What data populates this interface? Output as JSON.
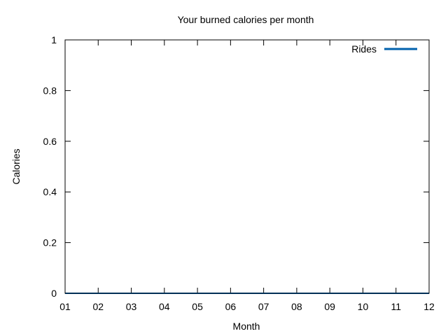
{
  "chart_data": {
    "type": "line",
    "title": "Your burned calories per month",
    "xlabel": "Month",
    "ylabel": "Calories",
    "categories": [
      "01",
      "02",
      "03",
      "04",
      "05",
      "06",
      "07",
      "08",
      "09",
      "10",
      "11",
      "12"
    ],
    "series": [
      {
        "name": "Rides",
        "color": "#0060ad",
        "values": [
          0,
          0,
          0,
          0,
          0,
          0,
          0,
          0,
          0,
          0,
          0,
          0
        ]
      }
    ],
    "ylim": [
      0,
      1
    ],
    "yticks": [
      0,
      0.2,
      0.4,
      0.6,
      0.8,
      1
    ],
    "ytick_labels": [
      "0",
      "0.2",
      "0.4",
      "0.6",
      "0.8",
      "1"
    ],
    "grid": false,
    "legend_position": "top-right"
  }
}
